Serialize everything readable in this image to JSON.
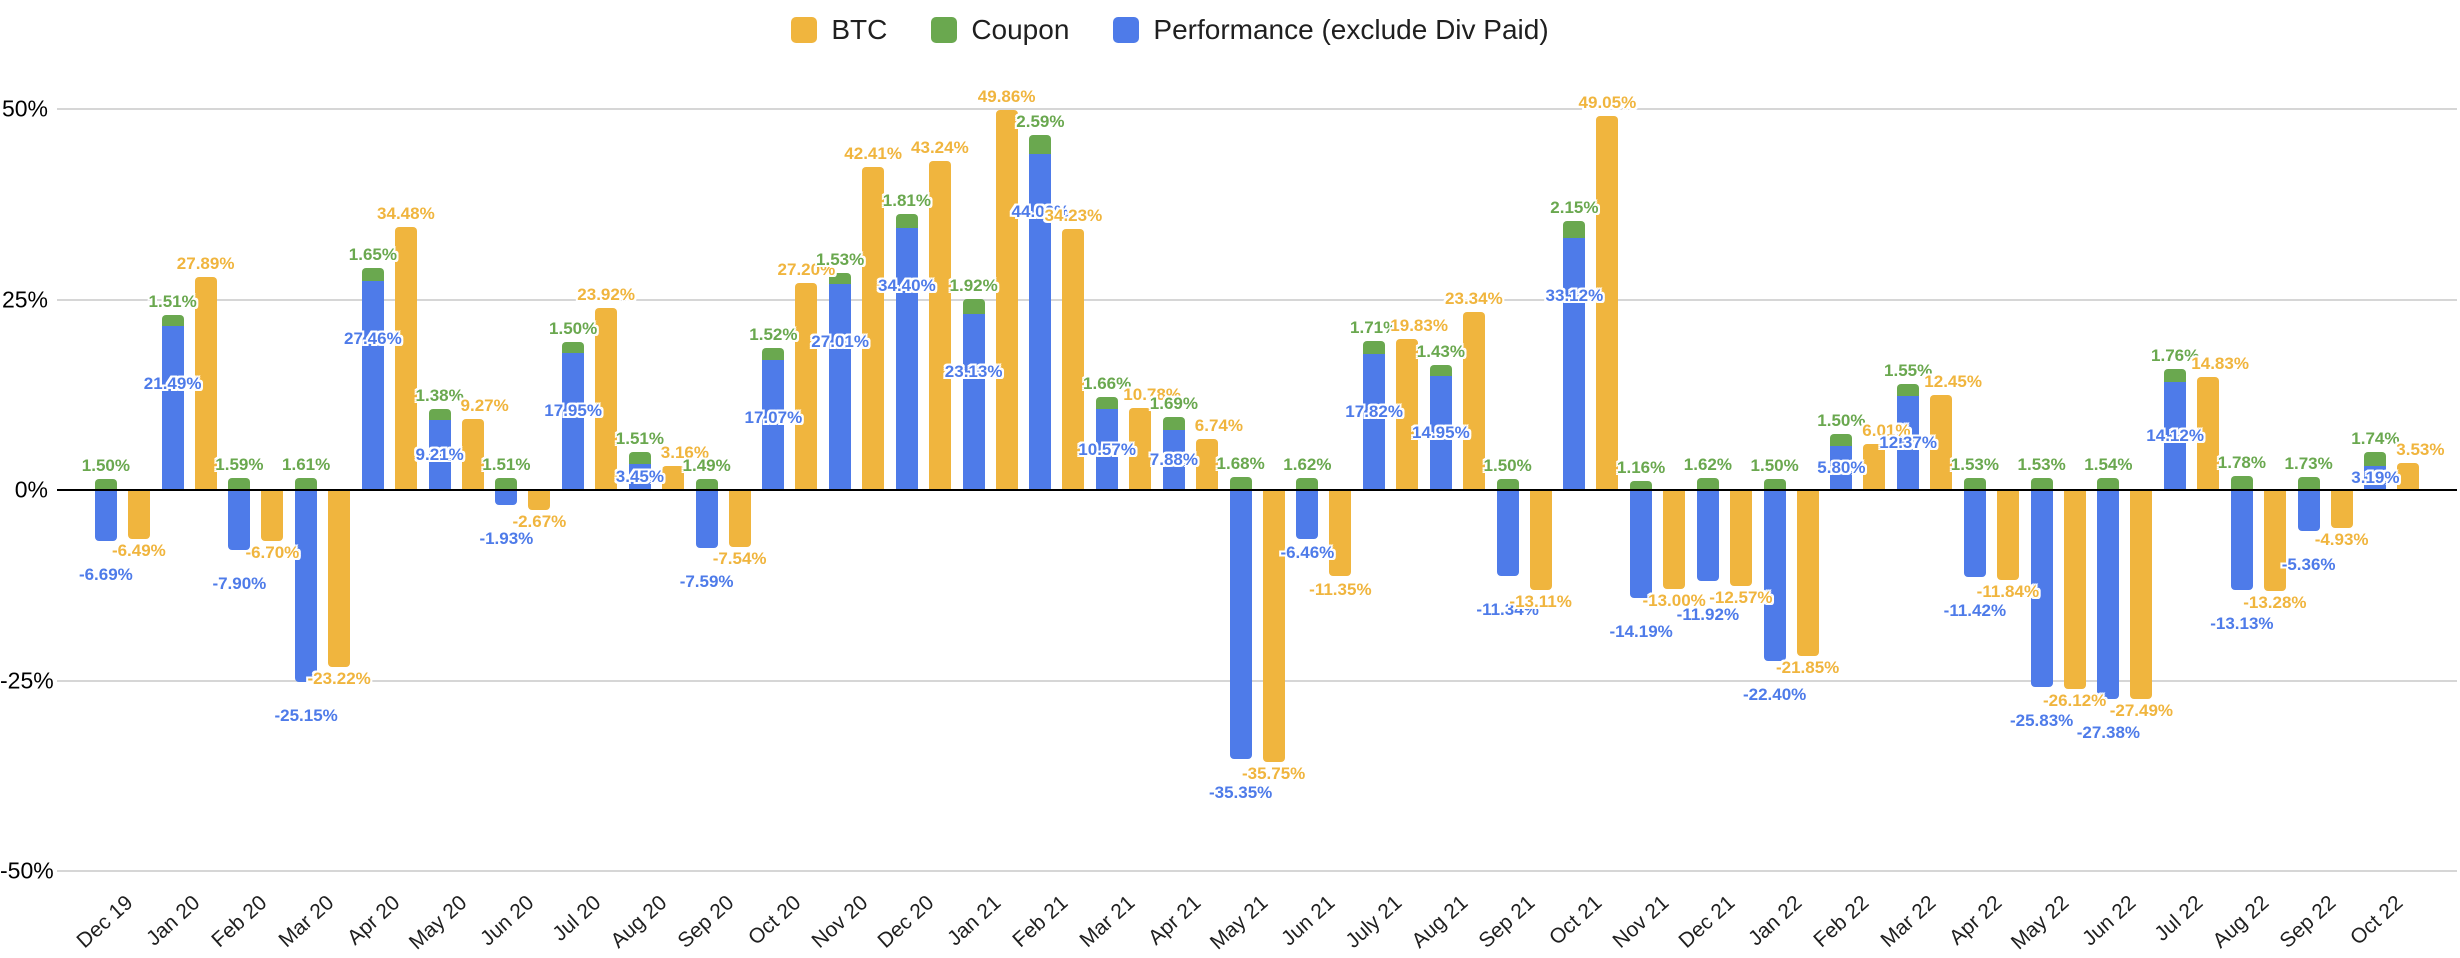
{
  "legend": {
    "items": [
      {
        "label": "BTC",
        "color": "#F0B53E"
      },
      {
        "label": "Coupon",
        "color": "#6AA84F"
      },
      {
        "label": "Performance (exclude Div Paid)",
        "color": "#4E7BE9"
      }
    ]
  },
  "y_axis": {
    "ticks": [
      "50%",
      "25%",
      "0%",
      "-25%",
      "-50%"
    ]
  },
  "chart_data": {
    "type": "bar",
    "title": "",
    "xlabel": "",
    "ylabel": "",
    "ylim": [
      -50,
      50
    ],
    "grid": true,
    "legend_position": "top-center",
    "value_label_format": "0.00%",
    "bar_layout": "Coupon stacked on Performance (one column), BTC as separate adjacent column",
    "categories": [
      "Dec 19",
      "Jan 20",
      "Feb 20",
      "Mar 20",
      "Apr 20",
      "May 20",
      "Jun 20",
      "Jul 20",
      "Aug 20",
      "Sep 20",
      "Oct 20",
      "Nov 20",
      "Dec 20",
      "Jan 21",
      "Feb 21",
      "Mar 21",
      "Apr 21",
      "May 21",
      "Jun 21",
      "July 21",
      "Aug 21",
      "Sep 21",
      "Oct 21",
      "Nov 21",
      "Dec 21",
      "Jan 22",
      "Feb 22",
      "Mar 22",
      "Apr 22",
      "May 22",
      "Jun 22",
      "Jul 22",
      "Aug 22",
      "Sep 22",
      "Oct 22"
    ],
    "series": [
      {
        "name": "BTC",
        "color": "#F0B53E",
        "values": [
          -6.49,
          27.89,
          -6.7,
          -23.22,
          34.48,
          9.27,
          -2.67,
          23.92,
          3.16,
          -7.54,
          27.2,
          42.41,
          43.24,
          49.86,
          34.23,
          10.78,
          6.74,
          -35.75,
          -11.35,
          19.83,
          23.34,
          -13.11,
          49.05,
          -13.0,
          -12.57,
          -21.85,
          6.01,
          12.45,
          -11.84,
          -26.12,
          -27.49,
          14.83,
          -13.28,
          -4.93,
          3.53
        ]
      },
      {
        "name": "Coupon",
        "color": "#6AA84F",
        "values": [
          1.5,
          1.51,
          1.59,
          1.61,
          1.65,
          1.38,
          1.51,
          1.5,
          1.51,
          1.49,
          1.52,
          1.53,
          1.81,
          1.92,
          2.59,
          1.66,
          1.69,
          1.68,
          1.62,
          1.71,
          1.43,
          1.5,
          2.15,
          1.16,
          1.62,
          1.5,
          1.5,
          1.55,
          1.53,
          1.53,
          1.54,
          1.76,
          1.78,
          1.73,
          1.74
        ]
      },
      {
        "name": "Performance (exclude Div Paid)",
        "color": "#4E7BE9",
        "values": [
          -6.69,
          21.49,
          -7.9,
          -25.15,
          27.46,
          9.21,
          -1.93,
          17.95,
          3.45,
          -7.59,
          17.07,
          27.01,
          34.4,
          23.13,
          44.06,
          10.57,
          7.88,
          -35.35,
          -6.46,
          17.82,
          14.95,
          -11.34,
          33.12,
          -14.19,
          -11.92,
          -22.4,
          5.8,
          12.37,
          -11.42,
          -25.83,
          -27.38,
          14.12,
          -13.13,
          -5.36,
          3.19
        ]
      }
    ]
  }
}
